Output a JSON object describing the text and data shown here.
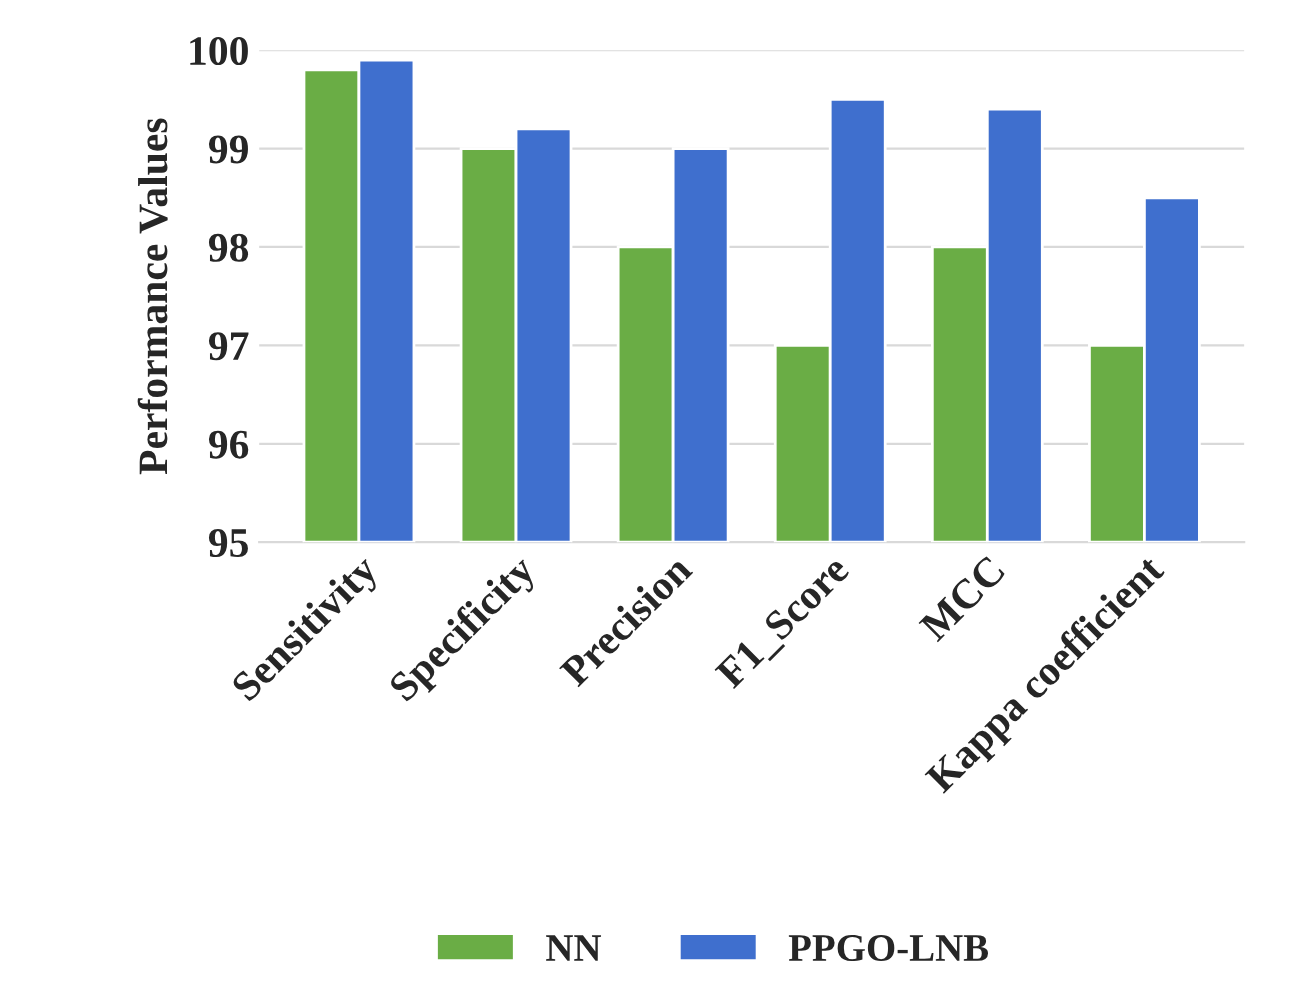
{
  "chart_data": {
    "type": "bar",
    "ylabel": "Performance Values",
    "categories": [
      "Sensitivity",
      "Specificity",
      "Precision",
      "F1_Score",
      "MCC",
      "Kappa coefficient"
    ],
    "series": [
      {
        "name": "NN",
        "color": "#6aad45",
        "values": [
          99.8,
          99.0,
          98.0,
          97.0,
          98.0,
          97.0
        ]
      },
      {
        "name": "PPGO-LNB",
        "color": "#3f6fce",
        "values": [
          99.9,
          99.2,
          99.0,
          99.5,
          99.4,
          98.5
        ]
      }
    ],
    "ylim": [
      95,
      100
    ],
    "yticks": [
      95,
      96,
      97,
      98,
      99,
      100
    ],
    "grid": "y",
    "legend": "bottom"
  }
}
